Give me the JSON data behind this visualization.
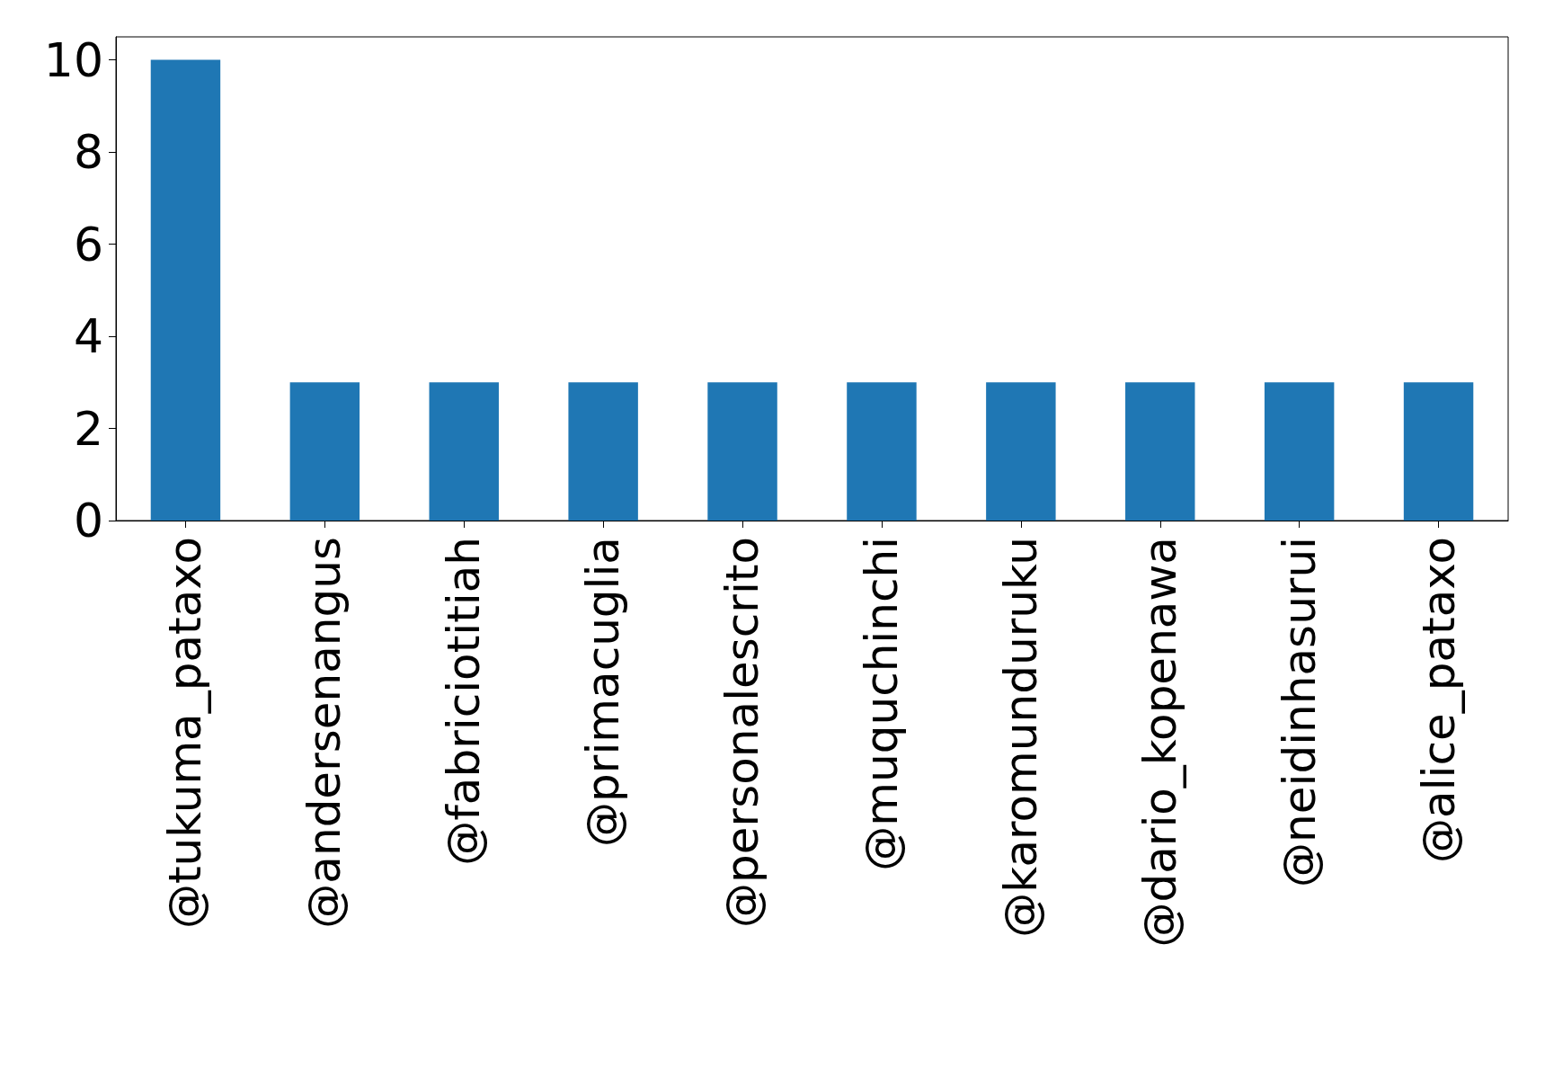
{
  "chart_data": {
    "type": "bar",
    "categories": [
      "@tukuma_pataxo",
      "@andersenangus",
      "@fabriciotitiah",
      "@primacuglia",
      "@personalescrito",
      "@muquchinchi",
      "@karomunduruku",
      "@dario_kopenawa",
      "@neidinhasurui",
      "@alice_pataxo"
    ],
    "values": [
      10,
      3,
      3,
      3,
      3,
      3,
      3,
      3,
      3,
      3
    ],
    "color": "#1f77b4",
    "ylim": [
      0,
      10.5
    ],
    "yticks": [
      0,
      2,
      4,
      6,
      8,
      10
    ],
    "grid": false
  }
}
